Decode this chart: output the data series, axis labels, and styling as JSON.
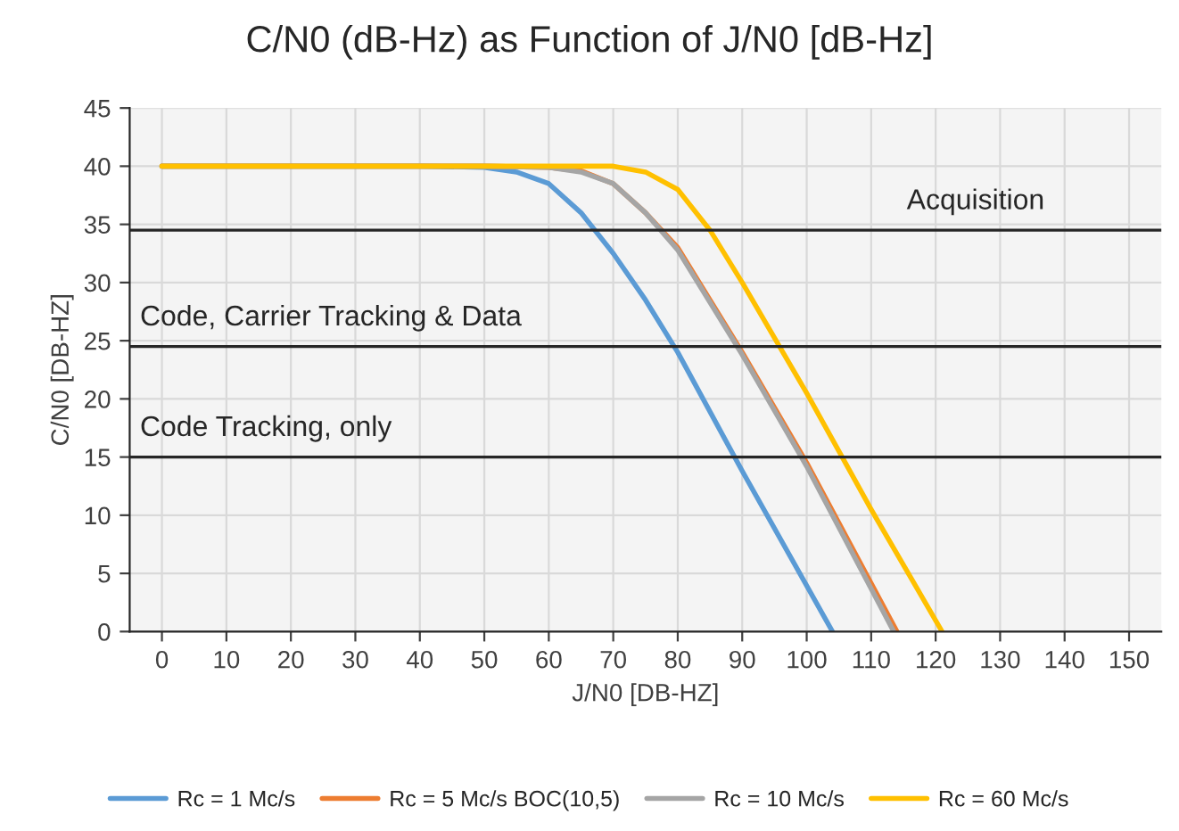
{
  "chart_data": {
    "type": "line",
    "title": "C/N0 (dB-Hz) as Function of J/N0 [dB-Hz]",
    "xlabel": "J/N0 [DB-HZ]",
    "ylabel": "C/N0 [DB-HZ]",
    "xlim": [
      -5,
      155
    ],
    "xticks": [
      0,
      10,
      20,
      30,
      40,
      50,
      60,
      70,
      80,
      90,
      100,
      110,
      120,
      130,
      140,
      150
    ],
    "ylim": [
      0,
      45
    ],
    "yticks": [
      0,
      5,
      10,
      15,
      20,
      25,
      30,
      35,
      40,
      45
    ],
    "grid": true,
    "legend": "bottom",
    "line_style": "solid",
    "marker": "none",
    "series": [
      {
        "name": "Rc = 1 Mc/s",
        "color": "#5b9bd5",
        "x": [
          0,
          40,
          50,
          55,
          60,
          65,
          70,
          75,
          80,
          90,
          104
        ],
        "values": [
          40,
          40,
          39.9,
          39.5,
          38.5,
          36,
          32.5,
          28.5,
          24,
          13.8,
          0
        ]
      },
      {
        "name": "Rc = 5 Mc/s BOC(10,5)",
        "color": "#ed7d31",
        "x": [
          0,
          50,
          60,
          65,
          70,
          75,
          80,
          90,
          100,
          114
        ],
        "values": [
          40,
          40,
          39.9,
          39.6,
          38.5,
          36,
          33,
          24,
          14.5,
          0
        ]
      },
      {
        "name": "Rc = 10 Mc/s",
        "color": "#a5a5a5",
        "x": [
          0,
          50,
          60,
          65,
          70,
          75,
          80,
          90,
          100,
          113.5
        ],
        "values": [
          40,
          40,
          39.9,
          39.5,
          38.5,
          36,
          32.8,
          23.8,
          14.2,
          0
        ]
      },
      {
        "name": "Rc = 60 Mc/s",
        "color": "#ffc000",
        "x": [
          0,
          60,
          70,
          75,
          80,
          85,
          90,
          100,
          110,
          121
        ],
        "values": [
          40,
          40,
          40,
          39.5,
          38,
          34.5,
          30,
          20.5,
          10.5,
          0
        ]
      }
    ],
    "ref_lines": [
      {
        "axis": "y",
        "value": 34.5,
        "label": "Acquisition",
        "color": "#262626"
      },
      {
        "axis": "y",
        "value": 24.5,
        "label": "Code, Carrier Tracking & Data",
        "color": "#262626"
      },
      {
        "axis": "y",
        "value": 15,
        "label": "Code Tracking, only",
        "color": "#262626"
      }
    ]
  }
}
